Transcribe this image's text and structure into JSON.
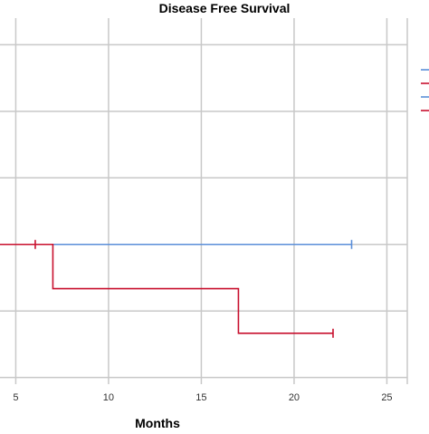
{
  "chart_data": {
    "type": "line",
    "title": "Disease Free Survival",
    "xlabel": "Months",
    "ylabel": "",
    "x_ticks": [
      "5",
      "10",
      "15",
      "20",
      "25"
    ],
    "x_tick_values": [
      5,
      10,
      15,
      20,
      25
    ],
    "xlim": [
      4.15,
      26.1
    ],
    "y_gridlines": [
      1.0,
      0.8,
      0.6,
      0.4,
      0.2,
      0.0
    ],
    "ylim": [
      -0.02,
      1.08
    ],
    "grid": true,
    "legend_position": "right",
    "series": [
      {
        "color": "#5b8fd9",
        "steps": [
          [
            4.15,
            0.4
          ],
          [
            23.1,
            0.4
          ]
        ],
        "censor_marks": [
          [
            23.1,
            0.4
          ]
        ]
      },
      {
        "color": "#c8102e",
        "steps": [
          [
            4.15,
            0.4
          ],
          [
            7,
            0.4
          ],
          [
            7,
            0.267
          ],
          [
            17,
            0.267
          ],
          [
            17,
            0.133
          ],
          [
            22.1,
            0.133
          ]
        ],
        "censor_marks": [
          [
            6.05,
            0.4
          ],
          [
            22.1,
            0.133
          ]
        ]
      }
    ],
    "legend_entries": [
      {
        "color": "#5b8fd9"
      },
      {
        "color": "#c8102e"
      },
      {
        "color": "#5b8fd9"
      },
      {
        "color": "#c8102e"
      }
    ]
  }
}
